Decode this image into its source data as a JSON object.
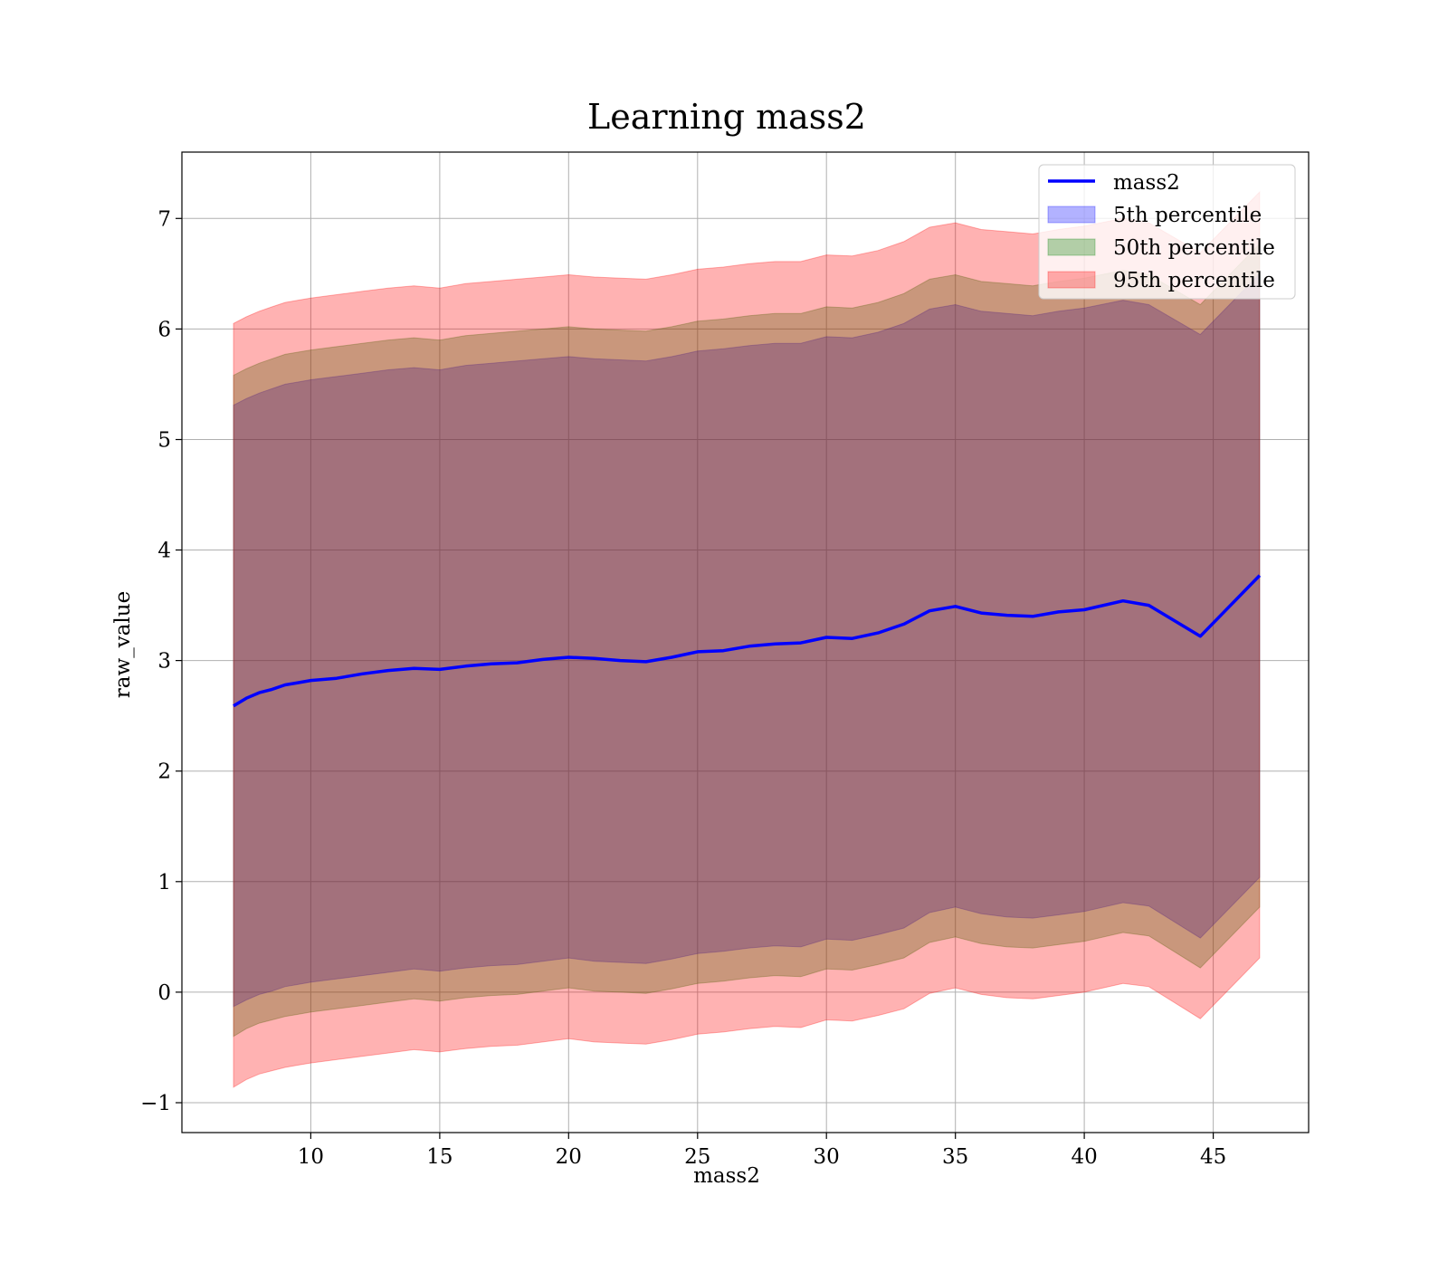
{
  "chart_data": {
    "type": "area",
    "title": "Learning mass2",
    "xlabel": "mass2",
    "ylabel": "raw_value",
    "xlim": [
      5.0,
      48.7
    ],
    "ylim": [
      -1.27,
      7.6
    ],
    "x_ticks": [
      10,
      15,
      20,
      25,
      30,
      35,
      40,
      45
    ],
    "y_ticks": [
      -1,
      0,
      1,
      2,
      3,
      4,
      5,
      6,
      7
    ],
    "x_tick_labels": [
      "10",
      "15",
      "20",
      "25",
      "30",
      "35",
      "40",
      "45"
    ],
    "y_tick_labels": [
      "−1",
      "0",
      "1",
      "2",
      "3",
      "4",
      "5",
      "6",
      "7"
    ],
    "grid": true,
    "legend": {
      "placement": "top-right",
      "entries": [
        "mass2",
        "5th percentile",
        "50th percentile",
        "95th percentile"
      ]
    },
    "x": [
      7.0,
      7.5,
      8.0,
      8.5,
      9.0,
      9.5,
      10.0,
      11.0,
      12.0,
      13.0,
      14.0,
      15.0,
      16.0,
      17.0,
      18.0,
      19.0,
      20.0,
      21.0,
      22.0,
      23.0,
      24.0,
      25.0,
      26.0,
      27.0,
      28.0,
      29.0,
      30.0,
      31.0,
      32.0,
      33.0,
      34.0,
      35.0,
      36.0,
      37.0,
      38.0,
      39.0,
      40.0,
      41.5,
      42.5,
      44.5,
      46.8
    ],
    "series": [
      {
        "name": "mass2",
        "kind": "line",
        "color": "#0000ff",
        "values": [
          2.59,
          2.66,
          2.71,
          2.74,
          2.78,
          2.8,
          2.82,
          2.84,
          2.88,
          2.91,
          2.93,
          2.92,
          2.95,
          2.97,
          2.98,
          3.01,
          3.03,
          3.02,
          3.0,
          2.99,
          3.03,
          3.08,
          3.09,
          3.13,
          3.15,
          3.16,
          3.21,
          3.2,
          3.25,
          3.33,
          3.45,
          3.49,
          3.43,
          3.41,
          3.4,
          3.44,
          3.46,
          3.54,
          3.5,
          3.22,
          3.77
        ]
      },
      {
        "name": "5th percentile",
        "kind": "band",
        "color": "#0000ff",
        "opacity": 0.3,
        "lower": [
          -0.13,
          -0.07,
          -0.02,
          0.01,
          0.05,
          0.07,
          0.09,
          0.12,
          0.15,
          0.18,
          0.21,
          0.19,
          0.22,
          0.24,
          0.25,
          0.28,
          0.31,
          0.28,
          0.27,
          0.26,
          0.3,
          0.35,
          0.37,
          0.4,
          0.42,
          0.41,
          0.48,
          0.47,
          0.52,
          0.58,
          0.72,
          0.77,
          0.71,
          0.68,
          0.67,
          0.7,
          0.73,
          0.81,
          0.78,
          0.49,
          1.04
        ],
        "upper": [
          5.31,
          5.37,
          5.42,
          5.46,
          5.5,
          5.52,
          5.54,
          5.57,
          5.6,
          5.63,
          5.65,
          5.63,
          5.67,
          5.69,
          5.71,
          5.73,
          5.75,
          5.73,
          5.72,
          5.71,
          5.75,
          5.8,
          5.82,
          5.85,
          5.87,
          5.87,
          5.93,
          5.92,
          5.97,
          6.05,
          6.18,
          6.22,
          6.16,
          6.14,
          6.12,
          6.16,
          6.19,
          6.26,
          6.22,
          5.95,
          6.5
        ]
      },
      {
        "name": "50th percentile",
        "kind": "band",
        "color": "#008000",
        "opacity": 0.3,
        "lower": [
          -0.4,
          -0.33,
          -0.28,
          -0.25,
          -0.22,
          -0.2,
          -0.18,
          -0.15,
          -0.12,
          -0.09,
          -0.06,
          -0.08,
          -0.05,
          -0.03,
          -0.02,
          0.01,
          0.04,
          0.01,
          0.0,
          -0.01,
          0.03,
          0.08,
          0.1,
          0.13,
          0.15,
          0.14,
          0.21,
          0.2,
          0.25,
          0.31,
          0.45,
          0.5,
          0.44,
          0.41,
          0.4,
          0.43,
          0.46,
          0.54,
          0.51,
          0.22,
          0.77
        ],
        "upper": [
          5.58,
          5.64,
          5.69,
          5.73,
          5.77,
          5.79,
          5.81,
          5.84,
          5.87,
          5.9,
          5.92,
          5.9,
          5.94,
          5.96,
          5.98,
          6.0,
          6.02,
          6.0,
          5.99,
          5.98,
          6.02,
          6.07,
          6.09,
          6.12,
          6.14,
          6.14,
          6.2,
          6.19,
          6.24,
          6.32,
          6.45,
          6.49,
          6.43,
          6.41,
          6.39,
          6.43,
          6.46,
          6.53,
          6.49,
          6.22,
          6.77
        ]
      },
      {
        "name": "95th percentile",
        "kind": "band",
        "color": "#ff0000",
        "opacity": 0.3,
        "lower": [
          -0.86,
          -0.79,
          -0.74,
          -0.71,
          -0.68,
          -0.66,
          -0.64,
          -0.61,
          -0.58,
          -0.55,
          -0.52,
          -0.54,
          -0.51,
          -0.49,
          -0.48,
          -0.45,
          -0.42,
          -0.45,
          -0.46,
          -0.47,
          -0.43,
          -0.38,
          -0.36,
          -0.33,
          -0.31,
          -0.32,
          -0.25,
          -0.26,
          -0.21,
          -0.15,
          -0.01,
          0.04,
          -0.02,
          -0.05,
          -0.06,
          -0.03,
          0.0,
          0.08,
          0.05,
          -0.24,
          0.31
        ],
        "upper": [
          6.05,
          6.11,
          6.16,
          6.2,
          6.24,
          6.26,
          6.28,
          6.31,
          6.34,
          6.37,
          6.39,
          6.37,
          6.41,
          6.43,
          6.45,
          6.47,
          6.49,
          6.47,
          6.46,
          6.45,
          6.49,
          6.54,
          6.56,
          6.59,
          6.61,
          6.61,
          6.67,
          6.66,
          6.71,
          6.79,
          6.92,
          6.96,
          6.9,
          6.88,
          6.86,
          6.9,
          6.93,
          7.0,
          6.96,
          6.69,
          7.24
        ]
      }
    ]
  }
}
